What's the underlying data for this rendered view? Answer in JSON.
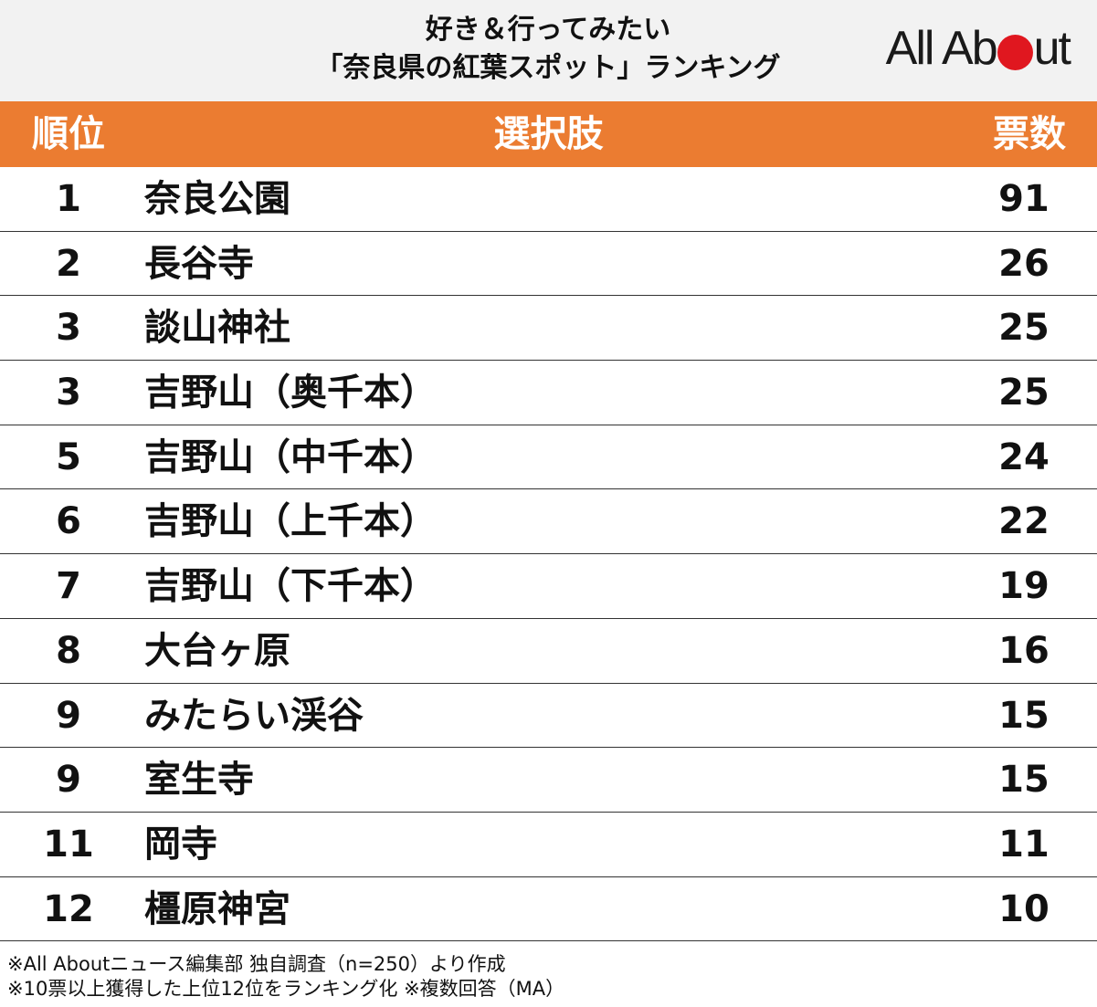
{
  "header": {
    "title_line1": "好き＆行ってみたい",
    "title_line2": "「奈良県の紅葉スポット」ランキング",
    "logo_left": "All Ab",
    "logo_right": "ut"
  },
  "table": {
    "columns": {
      "rank": "順位",
      "choice": "選択肢",
      "votes": "票数"
    },
    "rows": [
      {
        "rank": "1",
        "choice": "奈良公園",
        "votes": "91"
      },
      {
        "rank": "2",
        "choice": "長谷寺",
        "votes": "26"
      },
      {
        "rank": "3",
        "choice": "談山神社",
        "votes": "25"
      },
      {
        "rank": "3",
        "choice": "吉野山（奥千本）",
        "votes": "25"
      },
      {
        "rank": "5",
        "choice": "吉野山（中千本）",
        "votes": "24"
      },
      {
        "rank": "6",
        "choice": "吉野山（上千本）",
        "votes": "22"
      },
      {
        "rank": "7",
        "choice": "吉野山（下千本）",
        "votes": "19"
      },
      {
        "rank": "8",
        "choice": "大台ヶ原",
        "votes": "16"
      },
      {
        "rank": "9",
        "choice": "みたらい渓谷",
        "votes": "15"
      },
      {
        "rank": "9",
        "choice": "室生寺",
        "votes": "15"
      },
      {
        "rank": "11",
        "choice": "岡寺",
        "votes": "11"
      },
      {
        "rank": "12",
        "choice": "橿原神宮",
        "votes": "10"
      }
    ]
  },
  "notes": {
    "line1": "※All Aboutニュース編集部 独自調査（n=250）より作成",
    "line2": "※10票以上獲得した上位12位をランキング化 ※複数回答（MA）"
  },
  "colors": {
    "header_bg": "#eb7c31",
    "banner_bg": "#f2f2f2",
    "logo_dot": "#e0171f"
  },
  "chart_data": {
    "type": "table",
    "columns": [
      "順位",
      "選択肢",
      "票数"
    ],
    "categories": [
      "奈良公園",
      "長谷寺",
      "談山神社",
      "吉野山（奥千本）",
      "吉野山（中千本）",
      "吉野山（上千本）",
      "吉野山（下千本）",
      "大台ヶ原",
      "みたらい渓谷",
      "室生寺",
      "岡寺",
      "橿原神宮"
    ],
    "ranks": [
      1,
      2,
      3,
      3,
      5,
      6,
      7,
      8,
      9,
      9,
      11,
      12
    ],
    "values": [
      91,
      26,
      25,
      25,
      24,
      22,
      19,
      16,
      15,
      15,
      11,
      10
    ]
  }
}
